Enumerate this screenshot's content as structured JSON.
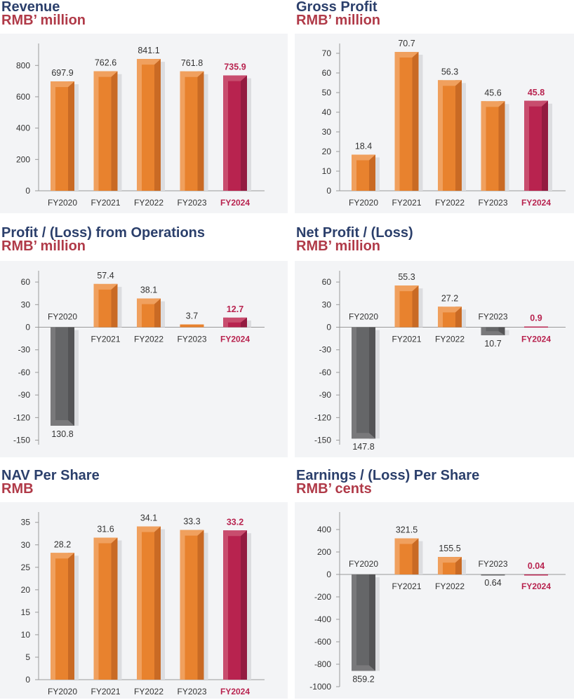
{
  "colors": {
    "title": "#2b3f6b",
    "unit": "#b03a48",
    "bar_positive": "#e8822e",
    "bar_highlight": "#b8234f",
    "bar_negative": "#656668",
    "highlight_text": "#b8234f",
    "panel_background": "#f3f4f6"
  },
  "chart_data": [
    {
      "type": "bar",
      "title": "Revenue",
      "unit": "RMB’ million",
      "categories": [
        "FY2020",
        "FY2021",
        "FY2022",
        "FY2023",
        "FY2024"
      ],
      "values": [
        697.9,
        762.6,
        841.1,
        761.8,
        735.9
      ],
      "value_labels": [
        "697.9",
        "762.6",
        "841.1",
        "761.8",
        "735.9"
      ],
      "highlight": "FY2024",
      "ylim": [
        0,
        940
      ],
      "yticks": [
        0,
        200,
        400,
        600,
        800
      ],
      "ytick_labels": [
        "0",
        "200",
        "400",
        "600",
        "800"
      ],
      "grid": false,
      "legend": "none"
    },
    {
      "type": "bar",
      "title": "Gross Profit",
      "unit": "RMB’ million",
      "categories": [
        "FY2020",
        "FY2021",
        "FY2022",
        "FY2023",
        "FY2024"
      ],
      "values": [
        18.4,
        70.7,
        56.3,
        45.6,
        45.8
      ],
      "value_labels": [
        "18.4",
        "70.7",
        "56.3",
        "45.6",
        "45.8"
      ],
      "highlight": "FY2024",
      "ylim": [
        0,
        75
      ],
      "yticks": [
        0,
        10,
        20,
        30,
        40,
        50,
        60,
        70
      ],
      "ytick_labels": [
        "0",
        "10",
        "20",
        "30",
        "40",
        "50",
        "60",
        "70"
      ],
      "grid": false,
      "legend": "none"
    },
    {
      "type": "bar",
      "title": "Profit / (Loss) from Operations",
      "unit": "RMB’ million",
      "categories": [
        "FY2020",
        "FY2021",
        "FY2022",
        "FY2023",
        "FY2024"
      ],
      "values": [
        -130.8,
        57.4,
        38.1,
        3.7,
        12.7
      ],
      "value_labels": [
        "130.8",
        "57.4",
        "38.1",
        "3.7",
        "12.7"
      ],
      "highlight": "FY2024",
      "ylim": [
        -156,
        75
      ],
      "yticks": [
        60,
        30,
        0,
        -30,
        -60,
        -90,
        -120,
        -150
      ],
      "ytick_labels": [
        "60",
        "30",
        "0",
        "-30",
        "-60",
        "-90",
        "-120",
        "-150"
      ],
      "grid": false,
      "legend": "none"
    },
    {
      "type": "bar",
      "title": "Net Profit / (Loss)",
      "unit": "RMB’ million",
      "categories": [
        "FY2020",
        "FY2021",
        "FY2022",
        "FY2023",
        "FY2024"
      ],
      "values": [
        -147.8,
        55.3,
        27.2,
        -10.7,
        0.9
      ],
      "value_labels": [
        "147.8",
        "55.3",
        "27.2",
        "10.7",
        "0.9"
      ],
      "highlight": "FY2024",
      "ylim": [
        -156,
        75
      ],
      "yticks": [
        60,
        30,
        0,
        -30,
        -60,
        -90,
        -120,
        -150
      ],
      "ytick_labels": [
        "60",
        "30",
        "0",
        "-30",
        "-60",
        "-90",
        "-120",
        "-150"
      ],
      "grid": false,
      "legend": "none"
    },
    {
      "type": "bar",
      "title": "NAV Per Share",
      "unit": "RMB",
      "categories": [
        "FY2020",
        "FY2021",
        "FY2022",
        "FY2023",
        "FY2024"
      ],
      "values": [
        28.2,
        31.6,
        34.1,
        33.3,
        33.2
      ],
      "value_labels": [
        "28.2",
        "31.6",
        "34.1",
        "33.3",
        "33.2"
      ],
      "highlight": "FY2024",
      "ylim": [
        0,
        37.3
      ],
      "yticks": [
        0,
        5,
        10,
        15,
        20,
        25,
        30,
        35
      ],
      "ytick_labels": [
        "0",
        "5",
        "10",
        "15",
        "20",
        "25",
        "30",
        "35"
      ],
      "grid": false,
      "legend": "none"
    },
    {
      "type": "bar",
      "title": "Earnings / (Loss) Per Share",
      "unit": "RMB’ cents",
      "categories": [
        "FY2020",
        "FY2021",
        "FY2022",
        "FY2023",
        "FY2024"
      ],
      "values": [
        -859.2,
        321.5,
        155.5,
        -0.64,
        0.04
      ],
      "value_labels": [
        "859.2",
        "321.5",
        "155.5",
        "0.64",
        "0.04"
      ],
      "highlight": "FY2024",
      "ylim": [
        -1000,
        556
      ],
      "yticks": [
        400,
        200,
        0,
        -200,
        -400,
        -600,
        -800,
        -1000
      ],
      "ytick_labels": [
        "400",
        "200",
        "0",
        "-200",
        "-400",
        "-600",
        "-800",
        "-1000"
      ],
      "grid": false,
      "legend": "none"
    }
  ]
}
